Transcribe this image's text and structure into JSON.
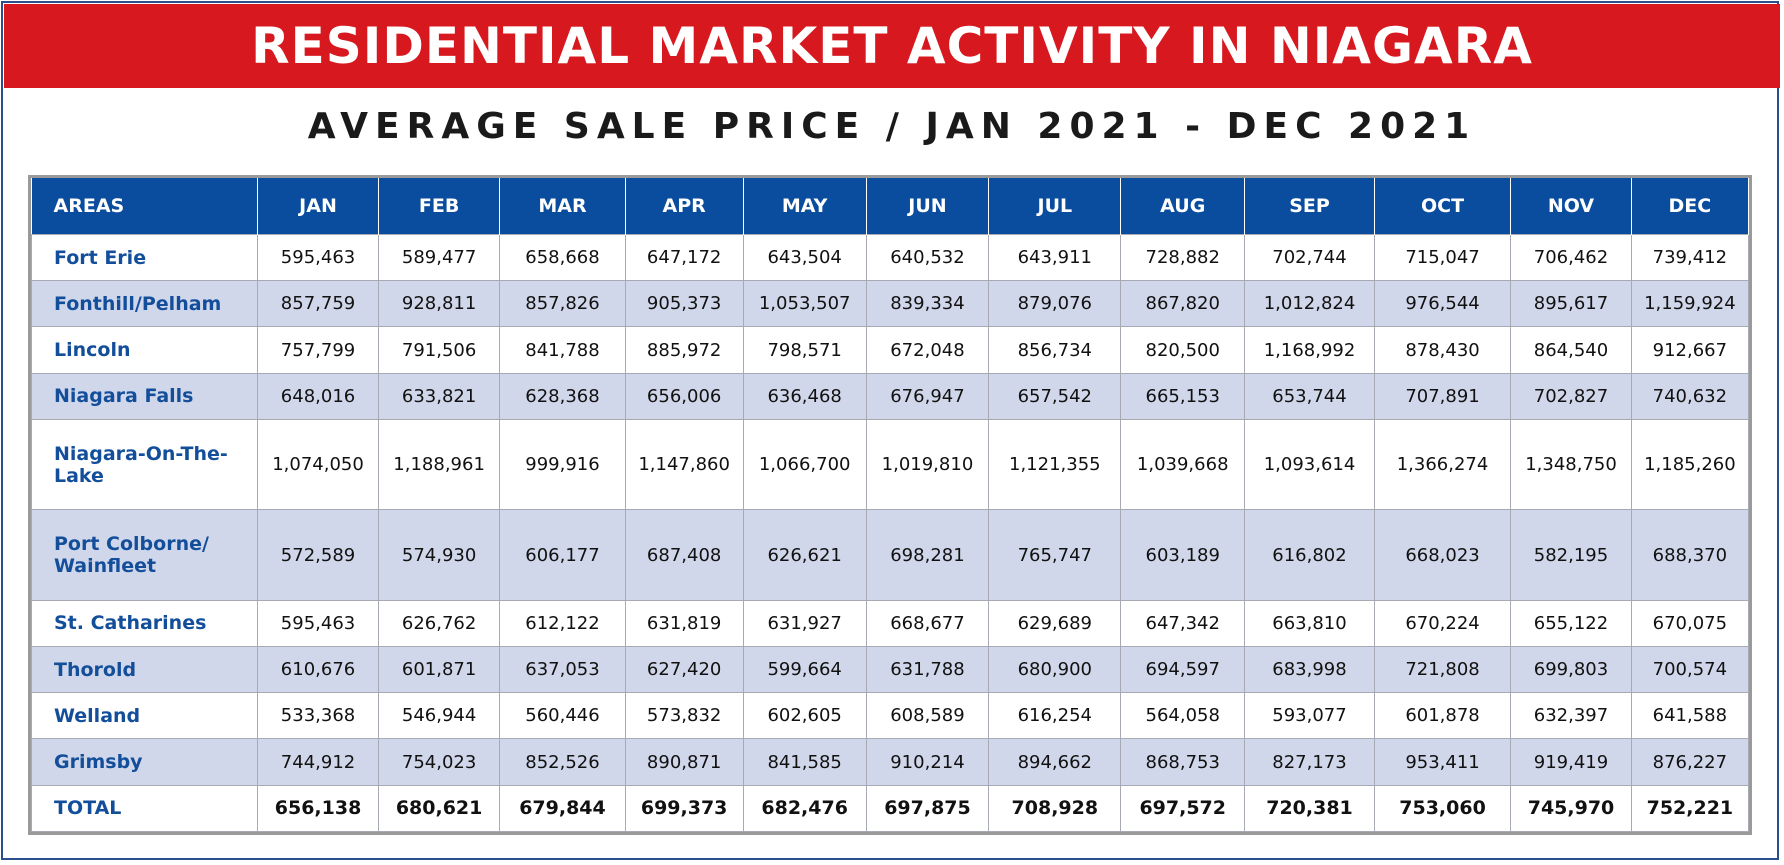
{
  "title": "RESIDENTIAL MARKET ACTIVITY IN NIAGARA",
  "subtitle": "AVERAGE SALE PRICE / JAN 2021 - DEC 2021",
  "colors": {
    "banner": "#d7191f",
    "header": "#0a4d9e",
    "alt_row": "#d1d7ea",
    "area_text": "#134e9b"
  },
  "chart_data": {
    "type": "table",
    "columns": [
      "AREAS",
      "JAN",
      "FEB",
      "MAR",
      "APR",
      "MAY",
      "JUN",
      "JUL",
      "AUG",
      "SEP",
      "OCT",
      "NOV",
      "DEC"
    ],
    "rows": [
      {
        "area": "Fort Erie",
        "values": [
          "595,463",
          "589,477",
          "658,668",
          "647,172",
          "643,504",
          "640,532",
          "643,911",
          "728,882",
          "702,744",
          "715,047",
          "706,462",
          "739,412"
        ]
      },
      {
        "area": "Fonthill/Pelham",
        "values": [
          "857,759",
          "928,811",
          "857,826",
          "905,373",
          "1,053,507",
          "839,334",
          "879,076",
          "867,820",
          "1,012,824",
          "976,544",
          "895,617",
          "1,159,924"
        ]
      },
      {
        "area": "Lincoln",
        "values": [
          "757,799",
          "791,506",
          "841,788",
          "885,972",
          "798,571",
          "672,048",
          "856,734",
          "820,500",
          "1,168,992",
          "878,430",
          "864,540",
          "912,667"
        ]
      },
      {
        "area": "Niagara Falls",
        "values": [
          "648,016",
          "633,821",
          "628,368",
          "656,006",
          "636,468",
          "676,947",
          "657,542",
          "665,153",
          "653,744",
          "707,891",
          "702,827",
          "740,632"
        ]
      },
      {
        "area": "Niagara-On-The-Lake",
        "values": [
          "1,074,050",
          "1,188,961",
          "999,916",
          "1,147,860",
          "1,066,700",
          "1,019,810",
          "1,121,355",
          "1,039,668",
          "1,093,614",
          "1,366,274",
          "1,348,750",
          "1,185,260"
        ]
      },
      {
        "area": "Port Colborne/ Wainfleet",
        "values": [
          "572,589",
          "574,930",
          "606,177",
          "687,408",
          "626,621",
          "698,281",
          "765,747",
          "603,189",
          "616,802",
          "668,023",
          "582,195",
          "688,370"
        ]
      },
      {
        "area": "St. Catharines",
        "values": [
          "595,463",
          "626,762",
          "612,122",
          "631,819",
          "631,927",
          "668,677",
          "629,689",
          "647,342",
          "663,810",
          "670,224",
          "655,122",
          "670,075"
        ]
      },
      {
        "area": "Thorold",
        "values": [
          "610,676",
          "601,871",
          "637,053",
          "627,420",
          "599,664",
          "631,788",
          "680,900",
          "694,597",
          "683,998",
          "721,808",
          "699,803",
          "700,574"
        ]
      },
      {
        "area": "Welland",
        "values": [
          "533,368",
          "546,944",
          "560,446",
          "573,832",
          "602,605",
          "608,589",
          "616,254",
          "564,058",
          "593,077",
          "601,878",
          "632,397",
          "641,588"
        ]
      },
      {
        "area": "Grimsby",
        "values": [
          "744,912",
          "754,023",
          "852,526",
          "890,871",
          "841,585",
          "910,214",
          "894,662",
          "868,753",
          "827,173",
          "953,411",
          "919,419",
          "876,227"
        ]
      },
      {
        "area": "TOTAL",
        "values": [
          "656,138",
          "680,621",
          "679,844",
          "699,373",
          "682,476",
          "697,875",
          "708,928",
          "697,572",
          "720,381",
          "753,060",
          "745,970",
          "752,221"
        ]
      }
    ]
  }
}
